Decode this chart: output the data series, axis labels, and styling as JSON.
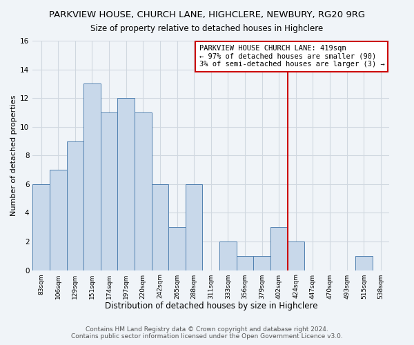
{
  "title": "PARKVIEW HOUSE, CHURCH LANE, HIGHCLERE, NEWBURY, RG20 9RG",
  "subtitle": "Size of property relative to detached houses in Highclere",
  "xlabel": "Distribution of detached houses by size in Highclere",
  "ylabel": "Number of detached properties",
  "bin_labels": [
    "83sqm",
    "106sqm",
    "129sqm",
    "151sqm",
    "174sqm",
    "197sqm",
    "220sqm",
    "242sqm",
    "265sqm",
    "288sqm",
    "311sqm",
    "333sqm",
    "356sqm",
    "379sqm",
    "402sqm",
    "424sqm",
    "447sqm",
    "470sqm",
    "493sqm",
    "515sqm",
    "538sqm"
  ],
  "bar_heights": [
    6,
    7,
    9,
    13,
    11,
    12,
    11,
    6,
    3,
    6,
    0,
    2,
    1,
    1,
    3,
    2,
    0,
    0,
    0,
    1,
    0
  ],
  "bar_color": "#c8d8ea",
  "bar_edge_color": "#5080b0",
  "vline_x": 14.5,
  "vline_color": "#cc0000",
  "annotation_text": "PARKVIEW HOUSE CHURCH LANE: 419sqm\n← 97% of detached houses are smaller (90)\n3% of semi-detached houses are larger (3) →",
  "annotation_box_edge": "#cc0000",
  "ylim": [
    0,
    16
  ],
  "yticks": [
    0,
    2,
    4,
    6,
    8,
    10,
    12,
    14,
    16
  ],
  "footer_text": "Contains HM Land Registry data © Crown copyright and database right 2024.\nContains public sector information licensed under the Open Government Licence v3.0.",
  "title_fontsize": 9.5,
  "subtitle_fontsize": 8.5,
  "xlabel_fontsize": 8.5,
  "ylabel_fontsize": 8,
  "tick_fontsize": 7.5,
  "xtick_fontsize": 6.5,
  "footer_fontsize": 6.5,
  "annotation_fontsize": 7.5,
  "grid_color": "#d0d8e0",
  "background_color": "#f0f4f8"
}
